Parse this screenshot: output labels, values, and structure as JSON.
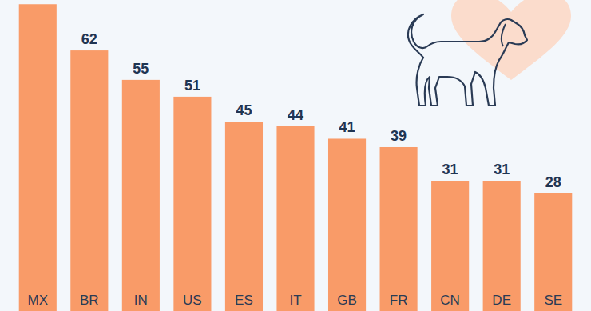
{
  "chart_data": {
    "type": "bar",
    "categories": [
      "MX",
      "BR",
      "IN",
      "US",
      "ES",
      "IT",
      "GB",
      "FR",
      "CN",
      "DE",
      "SE"
    ],
    "values": [
      73,
      62,
      55,
      51,
      45,
      44,
      41,
      39,
      31,
      31,
      28
    ],
    "value_labels": [
      null,
      "62",
      "55",
      "51",
      "45",
      "44",
      "41",
      "39",
      "31",
      "31",
      "28"
    ],
    "color": "#f99b68",
    "ylim": [
      0,
      74
    ],
    "grid": false,
    "data_labels": true,
    "tick_labels": "x"
  }
}
